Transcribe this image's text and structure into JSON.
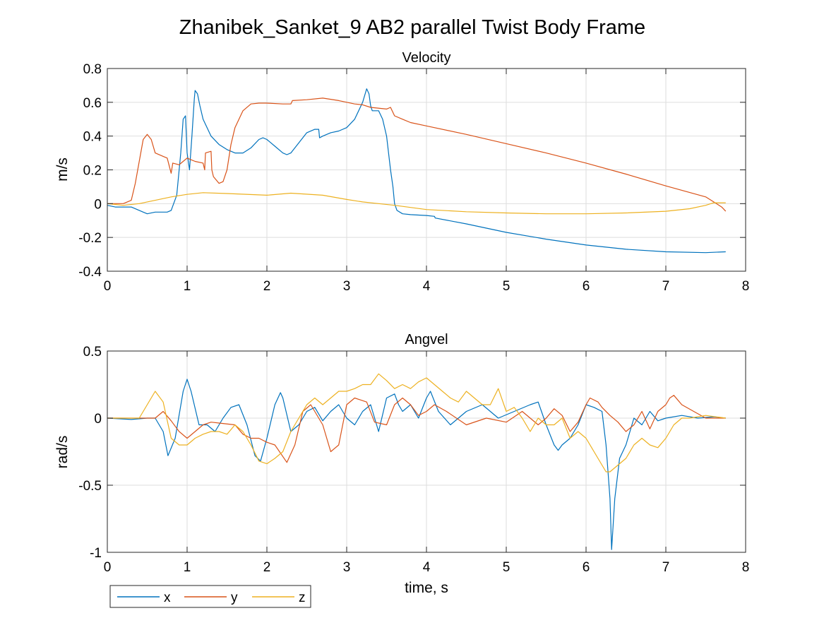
{
  "title": "Zhanibek_Sanket_9 AB2 parallel Twist Body Frame",
  "colors": {
    "x": "#0072BD",
    "y": "#D95319",
    "z": "#EDB120"
  },
  "legend": {
    "placement": "bottom-left",
    "entries": [
      "x",
      "y",
      "z"
    ]
  },
  "chart_data": [
    {
      "type": "line",
      "title": "Velocity",
      "xlabel": "",
      "ylabel": "m/s",
      "xlim": [
        0,
        8
      ],
      "ylim": [
        -0.4,
        0.8
      ],
      "xticks": [
        0,
        1,
        2,
        3,
        4,
        5,
        6,
        7,
        8
      ],
      "yticks": [
        -0.4,
        -0.2,
        0,
        0.2,
        0.4,
        0.6,
        0.8
      ],
      "xtick_labels": [
        "0",
        "1",
        "2",
        "3",
        "4",
        "5",
        "6",
        "7",
        "8"
      ],
      "ytick_labels": [
        "-0.4",
        "-0.2",
        "0",
        "0.2",
        "0.4",
        "0.6",
        "0.8"
      ],
      "grid": true,
      "series": [
        {
          "name": "x",
          "x": [
            0,
            0.1,
            0.3,
            0.45,
            0.5,
            0.6,
            0.75,
            0.8,
            0.87,
            0.92,
            0.95,
            0.98,
            1.0,
            1.03,
            1.06,
            1.09,
            1.1,
            1.13,
            1.16,
            1.2,
            1.3,
            1.4,
            1.5,
            1.6,
            1.7,
            1.8,
            1.9,
            1.95,
            2.0,
            2.1,
            2.2,
            2.25,
            2.3,
            2.4,
            2.5,
            2.6,
            2.65,
            2.66,
            2.7,
            2.8,
            2.9,
            3.0,
            3.1,
            3.2,
            3.25,
            3.28,
            3.3,
            3.32,
            3.36,
            3.4,
            3.45,
            3.5,
            3.55,
            3.58,
            3.6,
            3.63,
            3.7,
            3.8,
            4.0,
            4.1,
            4.11,
            4.5,
            5.0,
            5.5,
            6.0,
            6.5,
            7.0,
            7.5,
            7.75
          ],
          "values": [
            -0.01,
            -0.02,
            -0.02,
            -0.05,
            -0.06,
            -0.05,
            -0.05,
            -0.04,
            0.05,
            0.3,
            0.5,
            0.52,
            0.3,
            0.2,
            0.4,
            0.62,
            0.67,
            0.65,
            0.58,
            0.5,
            0.4,
            0.35,
            0.32,
            0.3,
            0.3,
            0.33,
            0.38,
            0.39,
            0.38,
            0.34,
            0.3,
            0.29,
            0.3,
            0.36,
            0.42,
            0.44,
            0.44,
            0.39,
            0.4,
            0.42,
            0.43,
            0.45,
            0.5,
            0.6,
            0.68,
            0.65,
            0.58,
            0.55,
            0.55,
            0.55,
            0.5,
            0.4,
            0.2,
            0.1,
            0.0,
            -0.04,
            -0.06,
            -0.065,
            -0.07,
            -0.075,
            -0.085,
            -0.12,
            -0.17,
            -0.21,
            -0.245,
            -0.27,
            -0.285,
            -0.29,
            -0.285
          ]
        },
        {
          "name": "y",
          "x": [
            0,
            0.2,
            0.3,
            0.35,
            0.4,
            0.45,
            0.5,
            0.55,
            0.6,
            0.7,
            0.75,
            0.8,
            0.82,
            0.9,
            0.95,
            1.0,
            1.05,
            1.1,
            1.2,
            1.22,
            1.23,
            1.3,
            1.31,
            1.33,
            1.4,
            1.45,
            1.5,
            1.55,
            1.6,
            1.7,
            1.8,
            1.9,
            2.0,
            2.2,
            2.3,
            2.32,
            2.5,
            2.7,
            2.9,
            3.0,
            3.1,
            3.2,
            3.3,
            3.5,
            3.55,
            3.6,
            3.7,
            3.8,
            4.0,
            4.5,
            5.0,
            5.5,
            6.0,
            6.5,
            7.0,
            7.5,
            7.6,
            7.7,
            7.75
          ],
          "values": [
            0.0,
            0.0,
            0.02,
            0.12,
            0.25,
            0.38,
            0.41,
            0.38,
            0.3,
            0.28,
            0.27,
            0.18,
            0.24,
            0.23,
            0.25,
            0.27,
            0.26,
            0.25,
            0.24,
            0.2,
            0.3,
            0.31,
            0.2,
            0.16,
            0.12,
            0.13,
            0.2,
            0.35,
            0.45,
            0.55,
            0.59,
            0.595,
            0.595,
            0.59,
            0.59,
            0.61,
            0.615,
            0.625,
            0.61,
            0.6,
            0.59,
            0.585,
            0.57,
            0.56,
            0.57,
            0.52,
            0.5,
            0.48,
            0.46,
            0.41,
            0.355,
            0.3,
            0.24,
            0.175,
            0.105,
            0.04,
            0.01,
            -0.02,
            -0.045
          ]
        },
        {
          "name": "z",
          "x": [
            0,
            0.2,
            0.4,
            0.6,
            0.8,
            1.0,
            1.2,
            1.5,
            2.0,
            2.3,
            2.7,
            3.0,
            3.2,
            3.4,
            3.6,
            4.0,
            4.5,
            5.0,
            5.5,
            6.0,
            6.5,
            7.0,
            7.3,
            7.5,
            7.6,
            7.75
          ],
          "values": [
            0.0,
            -0.01,
            0.0,
            0.02,
            0.04,
            0.055,
            0.065,
            0.06,
            0.05,
            0.062,
            0.05,
            0.025,
            0.01,
            0.0,
            -0.01,
            -0.035,
            -0.048,
            -0.055,
            -0.06,
            -0.06,
            -0.055,
            -0.045,
            -0.03,
            -0.01,
            0.005,
            0.005
          ]
        }
      ]
    },
    {
      "type": "line",
      "title": "Angvel",
      "xlabel": "time, s",
      "ylabel": "rad/s",
      "xlim": [
        0,
        8
      ],
      "ylim": [
        -1,
        0.5
      ],
      "xticks": [
        0,
        1,
        2,
        3,
        4,
        5,
        6,
        7,
        8
      ],
      "yticks": [
        -1,
        -0.5,
        0,
        0.5
      ],
      "xtick_labels": [
        "0",
        "1",
        "2",
        "3",
        "4",
        "5",
        "6",
        "7",
        "8"
      ],
      "ytick_labels": [
        "-1",
        "-0.5",
        "0",
        "0.5"
      ],
      "grid": true,
      "series": [
        {
          "name": "x",
          "x": [
            0,
            0.3,
            0.5,
            0.6,
            0.7,
            0.76,
            0.85,
            0.95,
            1.0,
            1.05,
            1.15,
            1.25,
            1.35,
            1.45,
            1.55,
            1.65,
            1.75,
            1.85,
            1.92,
            2.0,
            2.1,
            2.17,
            2.2,
            2.3,
            2.4,
            2.5,
            2.6,
            2.7,
            2.8,
            2.9,
            3.0,
            3.1,
            3.2,
            3.3,
            3.4,
            3.5,
            3.6,
            3.65,
            3.7,
            3.8,
            3.9,
            4.0,
            4.05,
            4.15,
            4.3,
            4.5,
            4.7,
            4.9,
            5.1,
            5.3,
            5.4,
            5.5,
            5.6,
            5.65,
            5.7,
            5.8,
            5.9,
            6.0,
            6.1,
            6.2,
            6.25,
            6.3,
            6.32,
            6.36,
            6.42,
            6.5,
            6.6,
            6.7,
            6.8,
            6.9,
            7.0,
            7.2,
            7.4,
            7.6,
            7.75
          ],
          "values": [
            0,
            -0.01,
            0.0,
            0.0,
            -0.1,
            -0.28,
            -0.15,
            0.2,
            0.29,
            0.2,
            -0.05,
            -0.05,
            -0.1,
            0.0,
            0.08,
            0.1,
            -0.05,
            -0.28,
            -0.32,
            -0.15,
            0.1,
            0.19,
            0.15,
            -0.1,
            -0.05,
            0.05,
            0.08,
            -0.02,
            0.05,
            0.1,
            0.0,
            -0.05,
            0.05,
            0.1,
            -0.1,
            0.15,
            0.18,
            0.1,
            0.05,
            0.1,
            0.0,
            0.15,
            0.2,
            0.05,
            -0.05,
            0.05,
            0.1,
            0.0,
            0.05,
            0.1,
            0.12,
            -0.05,
            -0.2,
            -0.24,
            -0.2,
            -0.15,
            -0.05,
            0.1,
            0.08,
            0.05,
            -0.2,
            -0.6,
            -0.98,
            -0.6,
            -0.3,
            -0.2,
            0.0,
            -0.05,
            0.05,
            -0.02,
            0.0,
            0.02,
            0.0,
            0.01,
            0.0
          ]
        },
        {
          "name": "y",
          "x": [
            0,
            0.3,
            0.6,
            0.7,
            0.8,
            0.9,
            1.0,
            1.2,
            1.3,
            1.45,
            1.6,
            1.7,
            1.8,
            1.9,
            2.0,
            2.1,
            2.25,
            2.35,
            2.45,
            2.55,
            2.7,
            2.8,
            2.9,
            3.0,
            3.1,
            3.25,
            3.35,
            3.5,
            3.6,
            3.7,
            3.8,
            3.9,
            4.0,
            4.1,
            4.25,
            4.5,
            4.75,
            5.0,
            5.2,
            5.3,
            5.4,
            5.5,
            5.6,
            5.7,
            5.8,
            5.9,
            6.0,
            6.05,
            6.15,
            6.2,
            6.3,
            6.4,
            6.5,
            6.6,
            6.7,
            6.8,
            6.9,
            7.0,
            7.05,
            7.1,
            7.2,
            7.35,
            7.5,
            7.75
          ],
          "values": [
            0,
            0.0,
            0.0,
            0.05,
            -0.02,
            -0.1,
            -0.15,
            -0.05,
            -0.03,
            -0.04,
            -0.05,
            -0.12,
            -0.15,
            -0.15,
            -0.18,
            -0.2,
            -0.33,
            -0.2,
            0.05,
            0.1,
            -0.05,
            -0.25,
            -0.2,
            0.1,
            0.15,
            0.12,
            -0.03,
            -0.05,
            0.1,
            0.15,
            0.1,
            0.02,
            0.05,
            0.1,
            0.05,
            -0.05,
            0.0,
            -0.03,
            0.05,
            0.0,
            -0.05,
            0.0,
            0.07,
            0.02,
            -0.1,
            -0.03,
            0.1,
            0.15,
            0.12,
            0.08,
            0.02,
            -0.03,
            -0.1,
            -0.05,
            0.05,
            -0.08,
            0.05,
            0.1,
            0.15,
            0.17,
            0.1,
            0.05,
            0.0,
            0.0
          ]
        },
        {
          "name": "z",
          "x": [
            0,
            0.4,
            0.5,
            0.6,
            0.7,
            0.8,
            0.9,
            1.0,
            1.1,
            1.2,
            1.3,
            1.4,
            1.5,
            1.6,
            1.7,
            1.8,
            1.9,
            2.0,
            2.1,
            2.2,
            2.3,
            2.4,
            2.5,
            2.6,
            2.7,
            2.8,
            2.9,
            3.0,
            3.1,
            3.2,
            3.3,
            3.4,
            3.5,
            3.6,
            3.7,
            3.8,
            3.9,
            4.0,
            4.1,
            4.2,
            4.3,
            4.4,
            4.5,
            4.6,
            4.7,
            4.8,
            4.9,
            5.0,
            5.1,
            5.2,
            5.3,
            5.4,
            5.5,
            5.6,
            5.7,
            5.8,
            5.9,
            6.0,
            6.1,
            6.2,
            6.25,
            6.3,
            6.4,
            6.5,
            6.6,
            6.7,
            6.8,
            6.9,
            7.0,
            7.1,
            7.2,
            7.3,
            7.5,
            7.75
          ],
          "values": [
            0,
            0.0,
            0.1,
            0.2,
            0.12,
            -0.15,
            -0.2,
            -0.2,
            -0.15,
            -0.12,
            -0.1,
            -0.1,
            -0.12,
            -0.05,
            -0.1,
            -0.2,
            -0.32,
            -0.34,
            -0.3,
            -0.25,
            -0.1,
            0.0,
            0.1,
            0.15,
            0.1,
            0.15,
            0.2,
            0.2,
            0.22,
            0.25,
            0.25,
            0.33,
            0.28,
            0.22,
            0.25,
            0.22,
            0.27,
            0.3,
            0.25,
            0.2,
            0.15,
            0.12,
            0.2,
            0.15,
            0.1,
            0.1,
            0.22,
            0.05,
            0.08,
            0.0,
            -0.1,
            0.0,
            -0.05,
            -0.05,
            0.0,
            -0.15,
            -0.1,
            -0.15,
            -0.25,
            -0.35,
            -0.4,
            -0.4,
            -0.35,
            -0.3,
            -0.2,
            -0.15,
            -0.2,
            -0.22,
            -0.15,
            -0.05,
            0.0,
            0.0,
            0.02,
            0.0
          ]
        }
      ]
    }
  ]
}
